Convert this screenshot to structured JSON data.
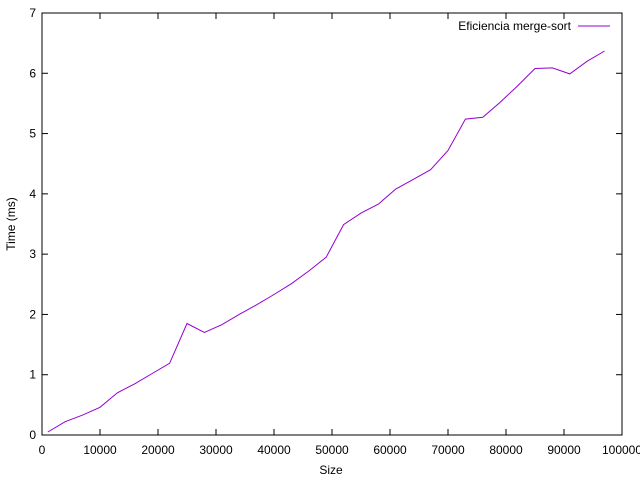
{
  "chart_data": {
    "type": "line",
    "xlabel": "Size",
    "ylabel": "Time (ms)",
    "xlim": [
      0,
      100000
    ],
    "ylim": [
      0,
      7
    ],
    "xticks": [
      0,
      10000,
      20000,
      30000,
      40000,
      50000,
      60000,
      70000,
      80000,
      90000,
      100000
    ],
    "yticks": [
      0,
      1,
      2,
      3,
      4,
      5,
      6,
      7
    ],
    "xtick_labels": [
      "0",
      "10000",
      "20000",
      "30000",
      "40000",
      "50000",
      "60000",
      "70000",
      "80000",
      "90000",
      "100000"
    ],
    "ytick_labels": [
      "0",
      "1",
      "2",
      "3",
      "4",
      "5",
      "6",
      "7"
    ],
    "grid": false,
    "legend_position": "top-right",
    "series": [
      {
        "name": "Eficiencia merge-sort",
        "color": "#9400d3",
        "x": [
          1000,
          4000,
          7000,
          10000,
          13000,
          16000,
          19000,
          22000,
          25000,
          28000,
          31000,
          34000,
          37000,
          40000,
          43000,
          46000,
          49000,
          52000,
          55000,
          58000,
          61000,
          64000,
          67000,
          70000,
          73000,
          76000,
          79000,
          82000,
          85000,
          88000,
          91000,
          94000,
          97000
        ],
        "values": [
          0.05,
          0.22,
          0.33,
          0.46,
          0.7,
          0.85,
          1.02,
          1.19,
          1.85,
          1.7,
          1.83,
          2.0,
          2.16,
          2.33,
          2.51,
          2.72,
          2.95,
          3.49,
          3.68,
          3.83,
          4.08,
          4.24,
          4.4,
          4.72,
          5.24,
          5.27,
          5.52,
          5.79,
          6.08,
          6.09,
          5.99,
          6.2,
          6.37
        ]
      }
    ]
  }
}
